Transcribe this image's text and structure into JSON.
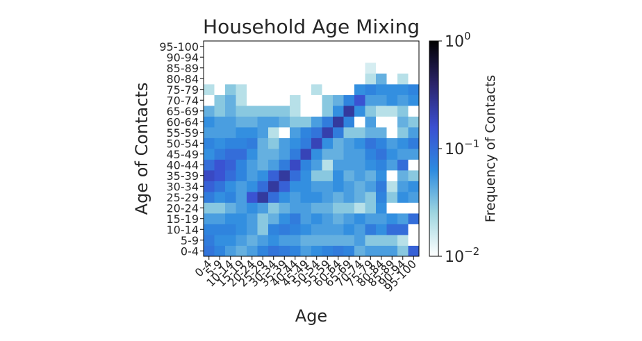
{
  "chart_data": {
    "type": "heatmap",
    "title": "Household Age Mixing",
    "xlabel": "Age",
    "ylabel": "Age of Contacts",
    "colorbar": {
      "label": "Frequency of Contacts",
      "scale": "log",
      "range": [
        0.01,
        1
      ],
      "ticks": [
        {
          "value": 1,
          "base": "10",
          "exp": "0"
        },
        {
          "value": 0.1,
          "base": "10",
          "exp": "−1"
        },
        {
          "value": 0.01,
          "base": "10",
          "exp": "−2"
        }
      ]
    },
    "categories": [
      "0-4",
      "5-9",
      "10-14",
      "15-19",
      "20-24",
      "25-29",
      "30-34",
      "35-39",
      "40-44",
      "45-49",
      "50-54",
      "55-59",
      "60-64",
      "65-69",
      "70-74",
      "75-79",
      "80-84",
      "85-89",
      "90-94",
      "95-100"
    ],
    "values": [
      [
        0.09,
        0.07,
        0.05,
        0.04,
        0.05,
        0.07,
        0.09,
        0.08,
        0.07,
        0.05,
        0.06,
        0.07,
        0.08,
        0.07,
        0.04,
        0.05,
        0.05,
        0.05,
        0.03,
        0.12
      ],
      [
        0.08,
        0.06,
        0.06,
        0.05,
        0.04,
        0.05,
        0.06,
        0.05,
        0.05,
        0.04,
        0.04,
        0.04,
        0.04,
        0.04,
        0.05,
        0.03,
        0.03,
        0.03,
        0.02,
        0.01
      ],
      [
        0.07,
        0.07,
        0.07,
        0.06,
        0.05,
        0.03,
        0.07,
        0.08,
        0.07,
        0.06,
        0.05,
        0.05,
        0.05,
        0.06,
        0.05,
        0.08,
        0.06,
        0.1,
        0.1,
        0.01
      ],
      [
        0.05,
        0.05,
        0.06,
        0.06,
        0.05,
        0.03,
        0.04,
        0.06,
        0.08,
        0.05,
        0.06,
        0.05,
        0.04,
        0.05,
        0.06,
        0.05,
        0.05,
        0.06,
        0.05,
        0.1
      ],
      [
        0.03,
        0.03,
        0.04,
        0.05,
        0.06,
        0.05,
        0.03,
        0.04,
        0.05,
        0.05,
        0.04,
        0.04,
        0.03,
        0.03,
        0.02,
        0.03,
        0.06,
        0.01,
        0.01,
        0.01
      ],
      [
        0.08,
        0.06,
        0.07,
        0.05,
        0.15,
        0.25,
        0.1,
        0.06,
        0.05,
        0.06,
        0.06,
        0.05,
        0.04,
        0.05,
        0.04,
        0.03,
        0.07,
        0.03,
        0.06,
        0.05
      ],
      [
        0.12,
        0.09,
        0.06,
        0.05,
        0.06,
        0.1,
        0.25,
        0.12,
        0.06,
        0.06,
        0.05,
        0.05,
        0.06,
        0.05,
        0.04,
        0.05,
        0.08,
        0.02,
        0.05,
        0.06
      ],
      [
        0.18,
        0.15,
        0.1,
        0.07,
        0.05,
        0.06,
        0.12,
        0.25,
        0.1,
        0.06,
        0.03,
        0.03,
        0.06,
        0.04,
        0.05,
        0.04,
        0.06,
        0.01,
        0.04,
        0.03
      ],
      [
        0.1,
        0.15,
        0.12,
        0.07,
        0.05,
        0.04,
        0.05,
        0.08,
        0.18,
        0.07,
        0.05,
        0.02,
        0.05,
        0.05,
        0.05,
        0.06,
        0.07,
        0.05,
        0.1,
        0.01
      ],
      [
        0.06,
        0.08,
        0.1,
        0.1,
        0.06,
        0.04,
        0.04,
        0.05,
        0.08,
        0.2,
        0.06,
        0.04,
        0.04,
        0.05,
        0.05,
        0.07,
        0.09,
        0.06,
        0.05,
        0.05
      ],
      [
        0.07,
        0.06,
        0.07,
        0.07,
        0.08,
        0.04,
        0.03,
        0.05,
        0.06,
        0.08,
        0.2,
        0.06,
        0.04,
        0.05,
        0.06,
        0.09,
        0.07,
        0.05,
        0.06,
        0.08
      ],
      [
        0.05,
        0.05,
        0.05,
        0.06,
        0.06,
        0.05,
        0.02,
        0.01,
        0.05,
        0.07,
        0.09,
        0.22,
        0.08,
        0.03,
        0.03,
        0.04,
        0.04,
        0.01,
        0.03,
        0.05
      ],
      [
        0.06,
        0.05,
        0.05,
        0.04,
        0.04,
        0.05,
        0.05,
        0.04,
        0.03,
        0.03,
        0.05,
        0.08,
        0.25,
        0.07,
        0.01,
        0.05,
        0.01,
        0.01,
        0.04,
        0.03
      ],
      [
        0.04,
        0.03,
        0.04,
        0.03,
        0.03,
        0.03,
        0.03,
        0.03,
        0.02,
        0.01,
        0.01,
        0.03,
        0.06,
        0.25,
        0.06,
        0.03,
        0.02,
        0.02,
        0.03,
        0.01
      ],
      [
        0.01,
        0.03,
        0.04,
        0.02,
        0.01,
        0.01,
        0.01,
        0.01,
        0.02,
        0.01,
        0.01,
        0.03,
        0.04,
        0.07,
        0.15,
        0.05,
        0.05,
        0.06,
        0.05,
        0.06
      ],
      [
        0.02,
        0.01,
        0.03,
        0.02,
        0.01,
        0.01,
        0.01,
        0.01,
        0.01,
        0.01,
        0.02,
        0.01,
        0.01,
        0.01,
        0.06,
        0.07,
        0.06,
        0.06,
        0.06,
        0.07
      ],
      [
        0.01,
        0.01,
        0.01,
        0.01,
        0.01,
        0.01,
        0.01,
        0.01,
        0.01,
        0.01,
        0.01,
        0.01,
        0.01,
        0.01,
        0.01,
        0.02,
        0.04,
        0.01,
        0.02,
        0.01
      ],
      [
        0.01,
        0.01,
        0.01,
        0.01,
        0.01,
        0.01,
        0.01,
        0.01,
        0.01,
        0.01,
        0.01,
        0.01,
        0.01,
        0.01,
        0.01,
        0.015,
        0.01,
        0.01,
        0.01,
        0.01
      ],
      [
        0.01,
        0.01,
        0.01,
        0.01,
        0.01,
        0.01,
        0.01,
        0.01,
        0.01,
        0.01,
        0.01,
        0.01,
        0.01,
        0.01,
        0.01,
        0.01,
        0.01,
        0.01,
        0.01,
        0.01
      ],
      [
        0.01,
        0.01,
        0.01,
        0.01,
        0.01,
        0.01,
        0.01,
        0.01,
        0.01,
        0.01,
        0.01,
        0.01,
        0.01,
        0.01,
        0.01,
        0.01,
        0.01,
        0.01,
        0.01,
        0.01
      ]
    ],
    "grid": false,
    "colors": {
      "stops": [
        "#ffffff",
        "#9fd6e0",
        "#2d8be0",
        "#3b4fd1",
        "#2b246a",
        "#000000"
      ],
      "text": "#262626",
      "axis": "#000000"
    }
  }
}
